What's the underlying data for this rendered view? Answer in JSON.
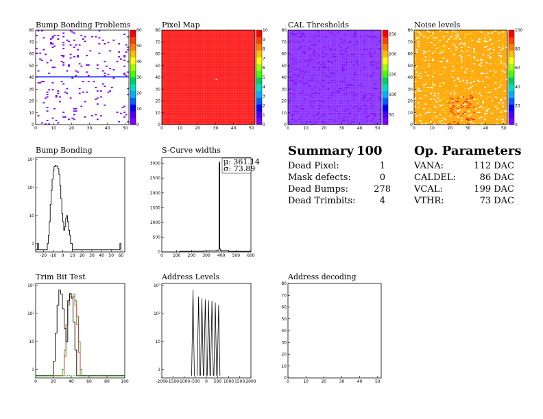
{
  "panels": [
    {
      "id": "p1",
      "title": "Bump Bonding Problems",
      "type": "heatmap",
      "xlim": [
        0,
        52
      ],
      "ylim": [
        0,
        80
      ],
      "xticks": [
        0,
        10,
        20,
        30,
        40,
        50
      ],
      "yticks": [
        0,
        10,
        20,
        30,
        40,
        50,
        60,
        70,
        80
      ],
      "palette": "sparse",
      "zticks": [
        0,
        10,
        20,
        30,
        40,
        50,
        60
      ],
      "ztick_labels": [
        "0",
        "10",
        "20",
        "30",
        "40",
        "50",
        "60"
      ]
    },
    {
      "id": "p2",
      "title": "Pixel Map",
      "type": "heatmap",
      "xlim": [
        0,
        52
      ],
      "ylim": [
        0,
        80
      ],
      "xticks": [
        0,
        10,
        20,
        30,
        40,
        50
      ],
      "yticks": [
        0,
        10,
        20,
        30,
        40,
        50,
        60,
        70,
        80
      ],
      "palette": "red",
      "zticks": [
        0,
        1,
        2,
        3,
        4,
        5,
        6,
        7,
        8,
        9,
        10
      ],
      "ztick_labels": [
        "0",
        "1",
        "2",
        "3",
        "4",
        "5",
        "6",
        "7",
        "8",
        "9",
        "10"
      ]
    },
    {
      "id": "p3",
      "title": "CAL Thresholds",
      "type": "heatmap",
      "xlim": [
        0,
        52
      ],
      "ylim": [
        0,
        80
      ],
      "xticks": [
        0,
        10,
        20,
        30,
        40,
        50
      ],
      "yticks": [
        0,
        10,
        20,
        30,
        40,
        50,
        60,
        70,
        80
      ],
      "palette": "violet",
      "zticks": [
        50,
        100,
        150,
        200,
        250
      ],
      "ztick_labels": [
        "50",
        "100",
        "150",
        "200",
        "250"
      ]
    },
    {
      "id": "p4",
      "title": "Noise levels",
      "type": "heatmap",
      "xlim": [
        0,
        52
      ],
      "ylim": [
        0,
        80
      ],
      "xticks": [
        0,
        10,
        20,
        30,
        40,
        50
      ],
      "yticks": [
        0,
        10,
        20,
        30,
        40,
        50,
        60,
        70,
        80
      ],
      "palette": "orange",
      "zticks": [
        0,
        20,
        40,
        60,
        80,
        100
      ],
      "ztick_labels": [
        "0",
        "20",
        "40",
        "60",
        "80",
        "100"
      ]
    },
    {
      "id": "p5",
      "title": "Bump Bonding",
      "type": "line",
      "xlim": [
        -28,
        64
      ],
      "ylog": true,
      "ylim": [
        0.5,
        1200
      ],
      "xticks": [
        -20,
        -10,
        0,
        10,
        20,
        30,
        40,
        50,
        60
      ],
      "yticks": [
        1,
        10,
        100,
        1000
      ],
      "ytick_labels": [
        "1",
        "10",
        "10²",
        "10³"
      ],
      "series": [
        {
          "color": "#000",
          "points": [
            [
              -28,
              0.6
            ],
            [
              -26,
              1
            ],
            [
              -25,
              0.6
            ],
            [
              -18,
              0.6
            ],
            [
              -16,
              1
            ],
            [
              -15,
              2
            ],
            [
              -14,
              6
            ],
            [
              -13,
              25
            ],
            [
              -12,
              80
            ],
            [
              -11,
              200
            ],
            [
              -10,
              420
            ],
            [
              -9,
              560
            ],
            [
              -8,
              620
            ],
            [
              -7,
              600
            ],
            [
              -6,
              580
            ],
            [
              -5,
              470
            ],
            [
              -4,
              300
            ],
            [
              -3,
              120
            ],
            [
              -2,
              40
            ],
            [
              -1,
              12
            ],
            [
              0,
              6
            ],
            [
              1,
              3
            ],
            [
              2,
              4
            ],
            [
              3,
              8
            ],
            [
              4,
              10
            ],
            [
              5,
              6
            ],
            [
              6,
              3
            ],
            [
              7,
              2
            ],
            [
              8,
              1
            ],
            [
              9,
              1
            ],
            [
              10,
              0.6
            ],
            [
              58,
              0.6
            ],
            [
              59,
              1
            ],
            [
              60,
              0.6
            ]
          ]
        }
      ]
    },
    {
      "id": "p6",
      "title": "S-Curve widths",
      "type": "line",
      "xlim": [
        0,
        600
      ],
      "ylim": [
        0,
        3200
      ],
      "xticks": [
        0,
        100,
        200,
        300,
        400,
        500,
        600
      ],
      "yticks": [
        0,
        500,
        1000,
        1500,
        2000,
        2500,
        3000
      ],
      "stats": [
        "μ: 361.14",
        "σ: 73.89"
      ],
      "series": [
        {
          "color": "#000",
          "points": [
            [
              0,
              0
            ],
            [
              120,
              20
            ],
            [
              200,
              25
            ],
            [
              280,
              30
            ],
            [
              320,
              40
            ],
            [
              370,
              60
            ],
            [
              384,
              80
            ],
            [
              386,
              3050
            ],
            [
              388,
              3000
            ],
            [
              390,
              100
            ],
            [
              395,
              50
            ],
            [
              450,
              20
            ],
            [
              600,
              10
            ]
          ]
        }
      ]
    },
    {
      "id": "p7",
      "title": "Trim Bit Test",
      "type": "line",
      "xlim": [
        0,
        100
      ],
      "ylog": true,
      "ylim": [
        0.5,
        1200
      ],
      "xticks": [
        0,
        20,
        40,
        60,
        80,
        100
      ],
      "yticks": [
        1,
        10,
        100,
        1000
      ],
      "ytick_labels": [
        "1",
        "10",
        "10²",
        "10³"
      ],
      "series": [
        {
          "color": "#00aa00",
          "points": [
            [
              0,
              0.6
            ],
            [
              28,
              0.6
            ],
            [
              30,
              1
            ],
            [
              32,
              5
            ],
            [
              34,
              40
            ],
            [
              36,
              200
            ],
            [
              38,
              500
            ],
            [
              40,
              420
            ],
            [
              42,
              500
            ],
            [
              44,
              300
            ],
            [
              46,
              80
            ],
            [
              48,
              10
            ],
            [
              50,
              1
            ],
            [
              52,
              0.6
            ],
            [
              100,
              0.6
            ]
          ]
        },
        {
          "color": "#e03030",
          "points": [
            [
              0,
              0.6
            ],
            [
              30,
              0.6
            ],
            [
              32,
              3
            ],
            [
              34,
              40
            ],
            [
              36,
              250
            ],
            [
              38,
              420
            ],
            [
              40,
              380
            ],
            [
              42,
              400
            ],
            [
              44,
              200
            ],
            [
              46,
              40
            ],
            [
              48,
              4
            ],
            [
              50,
              0.6
            ],
            [
              100,
              0.6
            ]
          ]
        },
        {
          "color": "#000",
          "points": [
            [
              0,
              0.6
            ],
            [
              18,
              0.6
            ],
            [
              20,
              2
            ],
            [
              22,
              20
            ],
            [
              24,
              200
            ],
            [
              26,
              700
            ],
            [
              28,
              500
            ],
            [
              30,
              150
            ],
            [
              32,
              30
            ],
            [
              34,
              10
            ],
            [
              36,
              300
            ],
            [
              38,
              520
            ],
            [
              40,
              350
            ],
            [
              42,
              50
            ],
            [
              44,
              5
            ],
            [
              46,
              0.6
            ],
            [
              100,
              0.6
            ]
          ]
        }
      ]
    },
    {
      "id": "p8",
      "title": "Address Levels",
      "type": "spikes",
      "xlim": [
        -2000,
        2000
      ],
      "ylog": true,
      "ylim": [
        0.5,
        1200
      ],
      "xticks": [
        -2000,
        -1500,
        -1000,
        -500,
        0,
        500,
        1000,
        1500,
        2000
      ],
      "yticks": [
        1,
        10,
        100,
        1000
      ],
      "ytick_labels": [
        "1",
        "10",
        "10²",
        "10³"
      ],
      "spikes": [
        [
          -600,
          700
        ],
        [
          -350,
          400
        ],
        [
          -200,
          350
        ],
        [
          -50,
          320
        ],
        [
          100,
          300
        ],
        [
          250,
          280
        ],
        [
          400,
          250
        ],
        [
          550,
          200
        ]
      ]
    },
    {
      "id": "p9",
      "title": "Address decoding",
      "type": "empty",
      "xlim": [
        0,
        52
      ],
      "ylim": [
        0,
        80
      ],
      "xticks": [
        0,
        10,
        20,
        30,
        40,
        50
      ],
      "yticks": [
        0,
        10,
        20,
        30,
        40,
        50,
        60,
        70,
        80
      ]
    }
  ],
  "summary": {
    "title": "Summary",
    "total": "100",
    "rows": [
      {
        "label": "Dead Pixel:",
        "value": "1"
      },
      {
        "label": "Mask defects:",
        "value": "0"
      },
      {
        "label": "Dead Bumps:",
        "value": "278"
      },
      {
        "label": "Dead Trimbits:",
        "value": "4"
      }
    ]
  },
  "params": {
    "title": "Op. Parameters",
    "rows": [
      {
        "label": "VANA:",
        "value": "112 DAC"
      },
      {
        "label": "CALDEL:",
        "value": "86 DAC"
      },
      {
        "label": "VCAL:",
        "value": "199 DAC"
      },
      {
        "label": "VTHR:",
        "value": "73 DAC"
      }
    ]
  }
}
